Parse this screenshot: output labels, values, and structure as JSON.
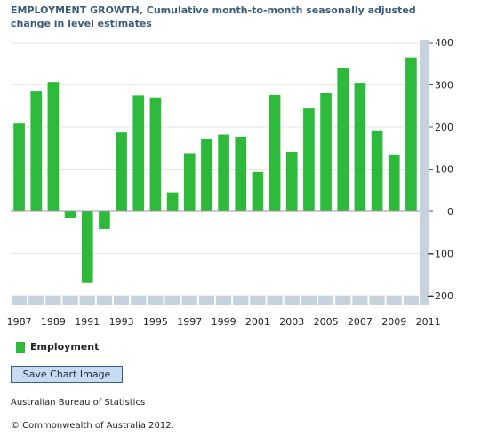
{
  "title": "EMPLOYMENT GROWTH, Cumulative month-to-month seasonally adjusted change in level estimates",
  "chart_data": {
    "type": "bar",
    "years": [
      1987,
      1988,
      1989,
      1990,
      1991,
      1992,
      1993,
      1994,
      1995,
      1996,
      1997,
      1998,
      1999,
      2000,
      2001,
      2002,
      2003,
      2004,
      2005,
      2006,
      2007,
      2008,
      2009,
      2010
    ],
    "values": [
      208,
      284,
      307,
      -15,
      -170,
      -42,
      187,
      275,
      270,
      45,
      138,
      172,
      182,
      177,
      93,
      276,
      141,
      244,
      280,
      339,
      303,
      192,
      135,
      365
    ],
    "x_tick_labels": [
      "1987",
      "1989",
      "1991",
      "1993",
      "1995",
      "1997",
      "1999",
      "2001",
      "2003",
      "2005",
      "2007",
      "2009",
      "2011"
    ],
    "y_ticks": [
      400,
      300,
      200,
      100,
      0,
      -100,
      -200
    ],
    "ylim": [
      -200,
      400
    ],
    "series_name": "Employment",
    "bar_color": "#2dba3a",
    "axis_band_color": "#c6d2de",
    "grid": true,
    "legend_position": "bottom-left"
  },
  "buttons": {
    "save_chart": "Save Chart Image"
  },
  "footer": {
    "source": "Australian Bureau of Statistics",
    "copyright": "© Commonwealth of Australia 2012."
  }
}
